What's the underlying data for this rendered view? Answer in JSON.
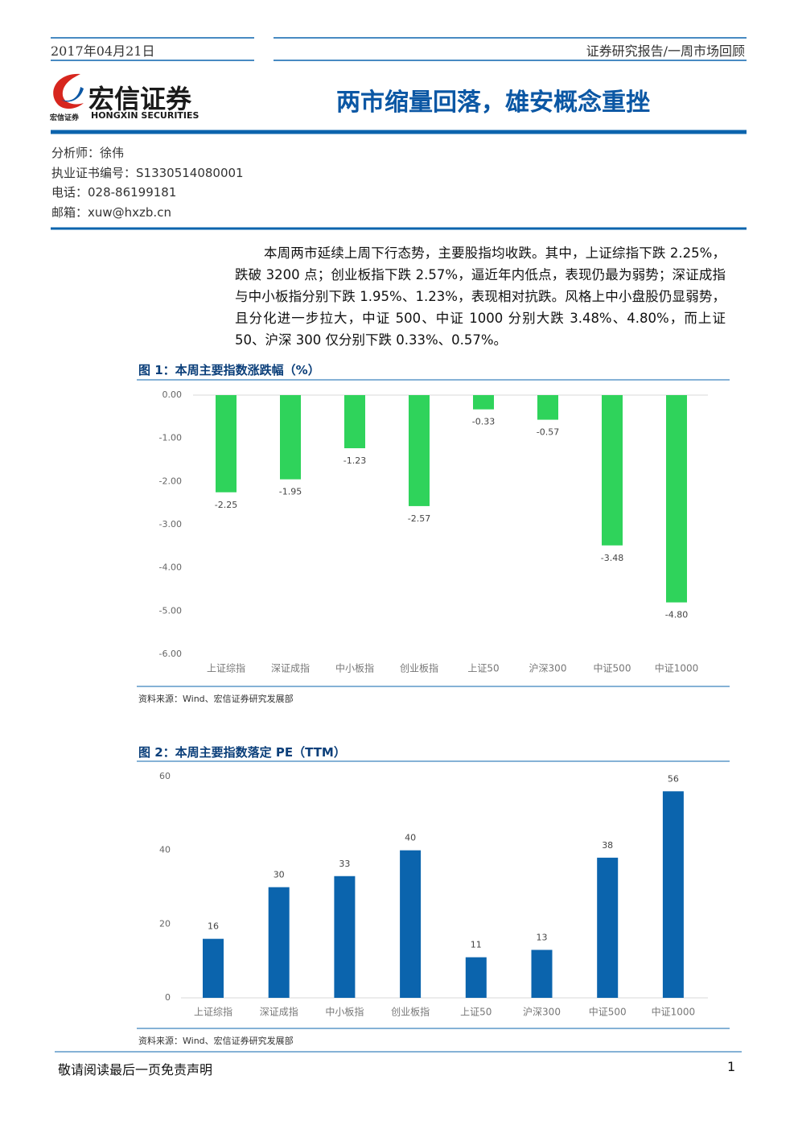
{
  "header": {
    "date": "2017年04月21日",
    "report_type": "证券研究报告/一周市场回顾",
    "logo_cn": "宏信证券",
    "logo_small": "宏信证券",
    "logo_en": "HONGXIN SECURITIES",
    "title": "两市缩量回落，雄安概念重挫"
  },
  "analyst": [
    "分析师：徐伟",
    "执业证书编号：S1330514080001",
    "电话：028-86199181",
    "邮箱：xuw@hxzb.cn"
  ],
  "body": "本周两市延续上周下行态势，主要股指均收跌。其中，上证综指下跌 2.25%，跌破 3200 点；创业板指下跌 2.57%，逼近年内低点，表现仍最为弱势；深证成指与中小板指分别下跌 1.95%、1.23%，表现相对抗跌。风格上中小盘股仍显弱势，且分化进一步拉大，中证 500、中证 1000 分别大跌 3.48%、4.80%，而上证 50、沪深 300 仅分别下跌 0.33%、0.57%。",
  "chart_data": [
    {
      "type": "bar",
      "title": "图 1：本周主要指数涨跌幅（%）",
      "categories": [
        "上证综指",
        "深证成指",
        "中小板指",
        "创业板指",
        "上证50",
        "沪深300",
        "中证500",
        "中证1000"
      ],
      "values": [
        -2.25,
        -1.95,
        -1.23,
        -2.57,
        -0.33,
        -0.57,
        -3.48,
        -4.8
      ],
      "value_labels": [
        "-2.25",
        "-1.95",
        "-1.23",
        "-2.57",
        "-0.33",
        "-0.57",
        "-3.48",
        "-4.80"
      ],
      "color": "#2fd35b",
      "ylim": [
        -6,
        0
      ],
      "yticks": [
        {
          "value": 0,
          "label": "0.00"
        },
        {
          "value": -1,
          "label": "-1.00"
        },
        {
          "value": -2,
          "label": "-2.00"
        },
        {
          "value": -3,
          "label": "-3.00"
        },
        {
          "value": -4,
          "label": "-4.00"
        },
        {
          "value": -5,
          "label": "-5.00"
        },
        {
          "value": -6,
          "label": "-6.00"
        }
      ],
      "grid": false,
      "source": "资料来源：Wind、宏信证券研究发展部"
    },
    {
      "type": "bar",
      "title": "图 2：本周主要指数落定 PE（TTM）",
      "categories": [
        "上证综指",
        "深证成指",
        "中小板指",
        "创业板指",
        "上证50",
        "沪深300",
        "中证500",
        "中证1000"
      ],
      "values": [
        16,
        30,
        33,
        40,
        11,
        13,
        38,
        56
      ],
      "color": "#0b64ad",
      "ylim": [
        0,
        60
      ],
      "yticks": [
        0,
        20,
        40,
        60
      ],
      "grid": false,
      "source": "资料来源：Wind、宏信证券研究发展部"
    }
  ],
  "footer": {
    "disclaimer": "敬请阅读最后一页免责声明",
    "page": 1
  }
}
